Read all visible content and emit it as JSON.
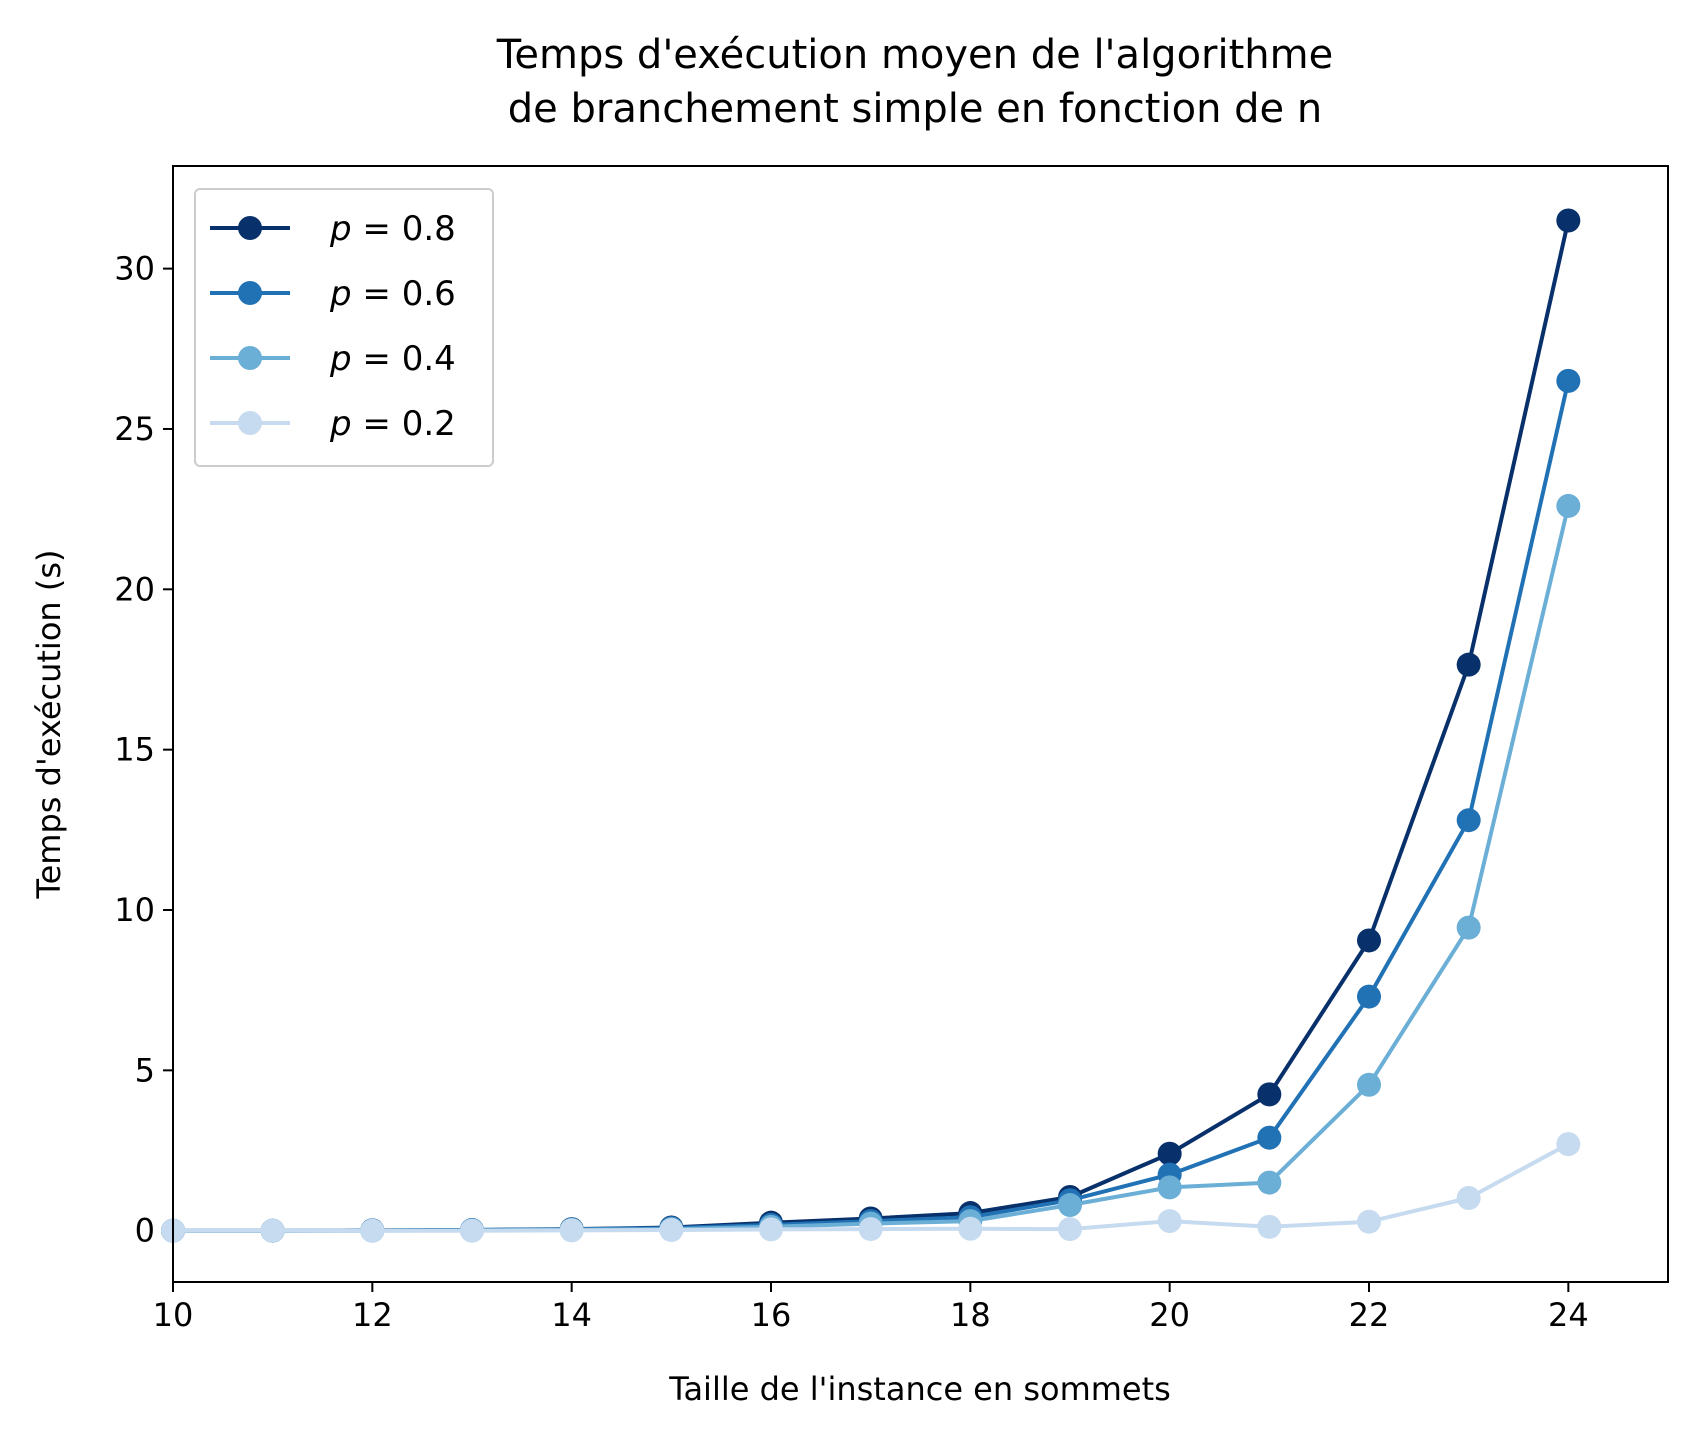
{
  "chart_data": {
    "type": "line",
    "title_line1": "Temps d'exécution moyen de l'algorithme",
    "title_line2": "de branchement simple en fonction de n",
    "xlabel": "Taille de l'instance en sommets",
    "ylabel": "Temps d'exécution (s)",
    "xlim": [
      10,
      25
    ],
    "ylim": [
      -1.6,
      33.2
    ],
    "xticks": [
      10,
      12,
      14,
      16,
      18,
      20,
      22,
      24
    ],
    "yticks": [
      0,
      5,
      10,
      15,
      20,
      25,
      30
    ],
    "legend_position": "upper-left",
    "x": [
      10,
      11,
      12,
      13,
      14,
      15,
      16,
      17,
      18,
      19,
      20,
      21,
      22,
      23,
      24
    ],
    "series": [
      {
        "name": "p = 0.8",
        "legend_var": "p",
        "legend_value": "0.8",
        "color": "#08306b",
        "values": [
          0.0,
          0.0,
          0.01,
          0.02,
          0.05,
          0.1,
          0.25,
          0.38,
          0.55,
          1.05,
          2.4,
          4.25,
          9.05,
          17.65,
          31.5
        ]
      },
      {
        "name": "p = 0.6",
        "legend_var": "p",
        "legend_value": "0.6",
        "color": "#2171b5",
        "values": [
          0.0,
          0.0,
          0.01,
          0.02,
          0.04,
          0.08,
          0.18,
          0.3,
          0.42,
          0.95,
          1.75,
          2.9,
          7.3,
          12.8,
          26.5
        ]
      },
      {
        "name": "p = 0.4",
        "legend_var": "p",
        "legend_value": "0.4",
        "color": "#6baed6",
        "values": [
          0.0,
          0.0,
          0.0,
          0.01,
          0.03,
          0.05,
          0.12,
          0.22,
          0.3,
          0.8,
          1.35,
          1.5,
          4.55,
          9.45,
          22.6
        ]
      },
      {
        "name": "p = 0.2",
        "legend_var": "p",
        "legend_value": "0.2",
        "color": "#c6dbef",
        "values": [
          0.0,
          0.0,
          0.0,
          0.0,
          0.01,
          0.02,
          0.04,
          0.05,
          0.06,
          0.05,
          0.3,
          0.12,
          0.28,
          1.02,
          2.7
        ]
      }
    ]
  }
}
